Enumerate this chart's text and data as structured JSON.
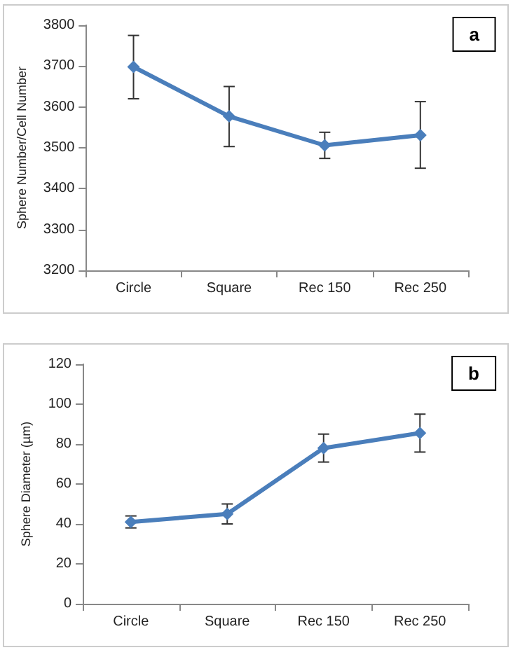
{
  "chart_data": [
    {
      "type": "line",
      "title": "a",
      "ylabel": "Sphere Number/Cell Number",
      "categories": [
        "Circle",
        "Square",
        "Rec 150",
        "Rec 250"
      ],
      "series": [
        {
          "color": "#4a7ebb",
          "values": [
            3698,
            3577,
            3506,
            3531
          ],
          "errors": [
            [
              3620,
              3775
            ],
            [
              3503,
              3650
            ],
            [
              3474,
              3538
            ],
            [
              3450,
              3613
            ]
          ]
        }
      ],
      "ylim": [
        3200,
        3800
      ],
      "yticks": [
        3200,
        3300,
        3400,
        3500,
        3600,
        3700,
        3800
      ],
      "grid": false,
      "marker": "diamond",
      "line_style": "solid"
    },
    {
      "type": "line",
      "title": "b",
      "ylabel": "Sphere Diameter (µm)",
      "categories": [
        "Circle",
        "Square",
        "Rec 150",
        "Rec 250"
      ],
      "series": [
        {
          "color": "#4a7ebb",
          "values": [
            41,
            45,
            78,
            85.5
          ],
          "errors": [
            [
              38,
              44
            ],
            [
              40,
              50
            ],
            [
              71,
              85
            ],
            [
              76,
              95
            ]
          ]
        }
      ],
      "ylim": [
        0,
        120
      ],
      "yticks": [
        0,
        20,
        40,
        60,
        80,
        100,
        120
      ],
      "grid": false,
      "marker": "diamond",
      "line_style": "solid"
    }
  ]
}
